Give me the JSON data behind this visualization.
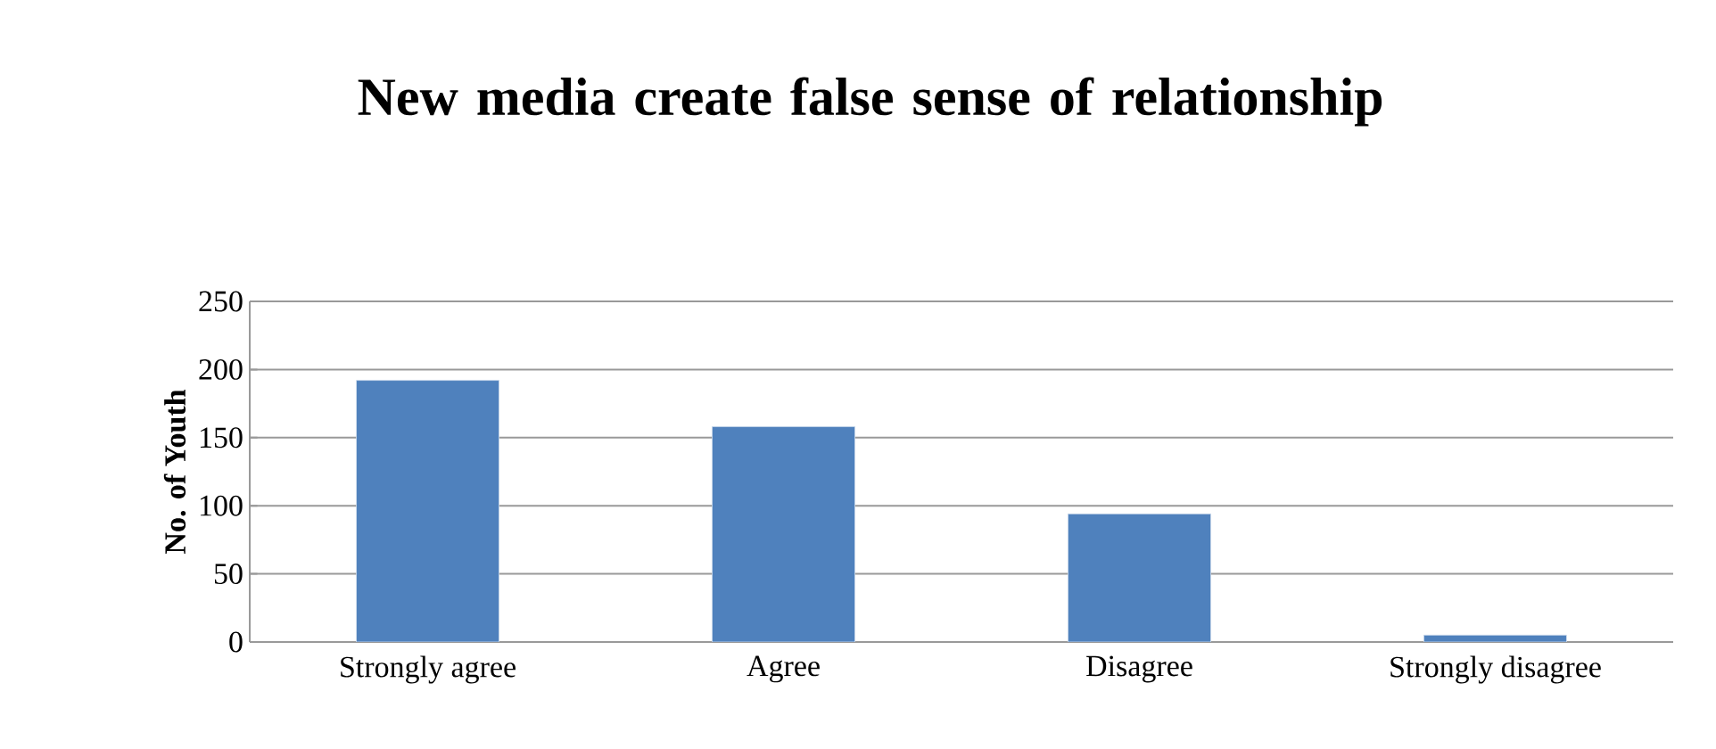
{
  "chart_data": {
    "type": "bar",
    "title": "New media create false sense of relationship",
    "ylabel": "No. of Youth",
    "categories": [
      "Strongly agree",
      "Agree",
      "Disagree",
      "Strongly disagree"
    ],
    "values": [
      192,
      158,
      94,
      5
    ],
    "color": "#4f81bd",
    "ylim": [
      0,
      250
    ],
    "yticks": [
      0,
      50,
      100,
      150,
      200,
      250
    ],
    "grid": "y"
  }
}
